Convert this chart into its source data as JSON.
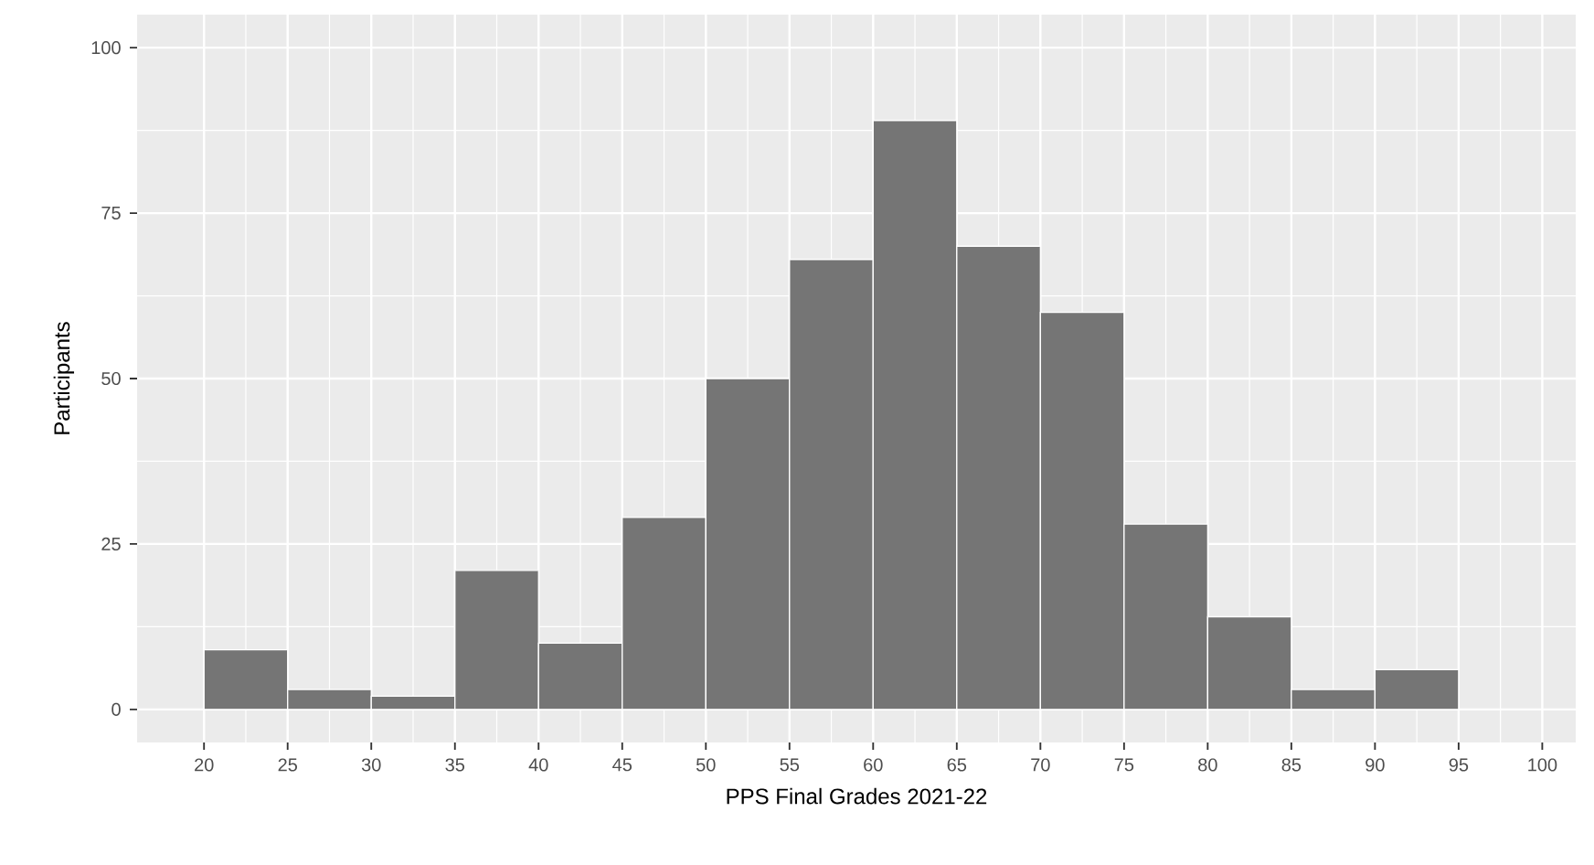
{
  "chart_data": {
    "type": "histogram",
    "xlabel": "PPS Final Grades 2021-22",
    "ylabel": "Participants",
    "bins": [
      20,
      25,
      30,
      35,
      40,
      45,
      50,
      55,
      60,
      65,
      70,
      75,
      80,
      85,
      90,
      95
    ],
    "values": [
      9,
      3,
      2,
      21,
      10,
      29,
      50,
      68,
      89,
      70,
      60,
      28,
      14,
      3,
      6
    ],
    "color": "#757575",
    "xlim": [
      16,
      102
    ],
    "ylim": [
      -5,
      105
    ],
    "xticks": [
      20,
      25,
      30,
      35,
      40,
      45,
      50,
      55,
      60,
      65,
      70,
      75,
      80,
      85,
      90,
      95,
      100
    ],
    "yticks": [
      0,
      25,
      50,
      75,
      100
    ],
    "grid": true
  }
}
